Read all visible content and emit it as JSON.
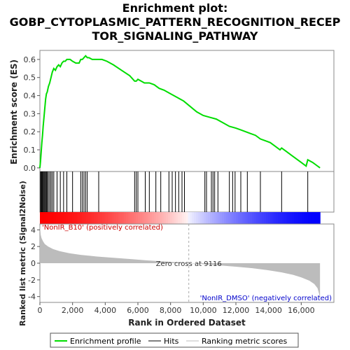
{
  "chart_data": {
    "type": "line",
    "title_lines": [
      "Enrichment plot:",
      "GOBP_CYTOPLASMIC_PATTERN_RECOGNITION_RECEP",
      "TOR_SIGNALING_PATHWAY"
    ],
    "xlabel": "Rank in Ordered Dataset",
    "ylabel_top": "Enrichment score (ES)",
    "ylabel_bottom": "Ranked list metric (Signal2Noise)",
    "xlim": [
      0,
      18000
    ],
    "x_ticks": [
      0,
      2000,
      4000,
      6000,
      8000,
      10000,
      12000,
      14000,
      16000
    ],
    "x_tick_labels": [
      "0",
      "2,000",
      "4,000",
      "6,000",
      "8,000",
      "10,000",
      "12,000",
      "14,000",
      "16,000"
    ],
    "es_ylim": [
      -0.02,
      0.65
    ],
    "es_ticks": [
      0.0,
      0.1,
      0.2,
      0.3,
      0.4,
      0.5,
      0.6
    ],
    "es_tick_labels": [
      "0.0",
      "0.1",
      "0.2",
      "0.3",
      "0.4",
      "0.5",
      "0.6"
    ],
    "metric_ylim": [
      -4.7,
      4.7
    ],
    "metric_ticks": [
      4,
      2,
      0,
      -2,
      -4
    ],
    "metric_tick_labels": [
      "4",
      "2",
      "0",
      "-2",
      "-4"
    ],
    "total_ranks": 17150,
    "enrichment_profile": {
      "x": [
        0,
        40,
        80,
        120,
        160,
        200,
        250,
        300,
        350,
        400,
        450,
        520,
        600,
        680,
        760,
        850,
        950,
        1050,
        1150,
        1250,
        1350,
        1450,
        1550,
        1650,
        1750,
        1850,
        2000,
        2200,
        2400,
        2500,
        2600,
        2700,
        2800,
        2900,
        3000,
        3200,
        3400,
        3600,
        3800,
        4100,
        4500,
        5000,
        5500,
        5800,
        5900,
        6000,
        6200,
        6400,
        6700,
        7000,
        7300,
        7600,
        8000,
        8400,
        8800,
        9200,
        9600,
        10000,
        10400,
        10800,
        11200,
        11600,
        12000,
        12300,
        12600,
        12900,
        13200,
        13500,
        13800,
        14100,
        14400,
        14700,
        14800,
        15100,
        15400,
        15700,
        16000,
        16300,
        16400,
        16700,
        17000,
        17150
      ],
      "y": [
        0.0,
        0.04,
        0.09,
        0.14,
        0.18,
        0.23,
        0.28,
        0.33,
        0.38,
        0.41,
        0.42,
        0.45,
        0.47,
        0.5,
        0.53,
        0.55,
        0.54,
        0.56,
        0.57,
        0.56,
        0.58,
        0.59,
        0.59,
        0.6,
        0.6,
        0.6,
        0.59,
        0.58,
        0.58,
        0.6,
        0.6,
        0.61,
        0.62,
        0.61,
        0.61,
        0.6,
        0.6,
        0.6,
        0.6,
        0.59,
        0.57,
        0.54,
        0.51,
        0.48,
        0.48,
        0.49,
        0.48,
        0.47,
        0.47,
        0.46,
        0.44,
        0.43,
        0.41,
        0.39,
        0.37,
        0.34,
        0.31,
        0.29,
        0.28,
        0.27,
        0.25,
        0.23,
        0.22,
        0.21,
        0.2,
        0.19,
        0.18,
        0.16,
        0.15,
        0.14,
        0.12,
        0.1,
        0.11,
        0.09,
        0.07,
        0.05,
        0.03,
        0.01,
        0.045,
        0.03,
        0.01,
        0.0
      ]
    },
    "hits": [
      40,
      80,
      120,
      160,
      200,
      250,
      300,
      350,
      400,
      450,
      520,
      600,
      680,
      760,
      850,
      1050,
      1250,
      1450,
      1650,
      2000,
      2500,
      2600,
      2700,
      2800,
      2900,
      3600,
      5800,
      5900,
      6000,
      6450,
      6700,
      7100,
      7400,
      7900,
      8100,
      8300,
      8500,
      8700,
      8850,
      10100,
      10200,
      10500,
      10600,
      10700,
      10900,
      11600,
      11800,
      11950,
      12300,
      12700,
      13500,
      14800,
      16400
    ],
    "metric_curve": {
      "x": [
        0,
        50,
        100,
        200,
        300,
        500,
        800,
        1200,
        1800,
        2500,
        3500,
        4500,
        5500,
        6500,
        7500,
        8500,
        9116,
        10000,
        11000,
        12000,
        13000,
        14000,
        14800,
        15500,
        16000,
        16500,
        16800,
        17000,
        17100,
        17150
      ],
      "y": [
        4.5,
        3.4,
        3.0,
        2.6,
        2.3,
        2.0,
        1.7,
        1.45,
        1.2,
        1.0,
        0.8,
        0.65,
        0.5,
        0.35,
        0.22,
        0.1,
        0.0,
        -0.12,
        -0.26,
        -0.42,
        -0.6,
        -0.85,
        -1.1,
        -1.4,
        -1.7,
        -2.1,
        -2.5,
        -3.0,
        -3.7,
        -4.5
      ]
    },
    "zero_cross": 9116,
    "zero_cross_label": "Zero cross at 9116",
    "positive_label": "'NonIR_B10' (positively correlated)",
    "negative_label": "'NonIR_DMSO' (negatively correlated)",
    "colors": {
      "profile": "#00dd00",
      "hits": "#000000",
      "metric_fill": "#bcbcbc",
      "positive_text": "#cc0000",
      "negative_text": "#0000cc"
    },
    "legend": [
      {
        "label": "Enrichment profile",
        "key": "profile"
      },
      {
        "label": "Hits",
        "key": "hits"
      },
      {
        "label": "Ranking metric scores",
        "key": "metric"
      }
    ],
    "legend_placement": "bottom"
  }
}
